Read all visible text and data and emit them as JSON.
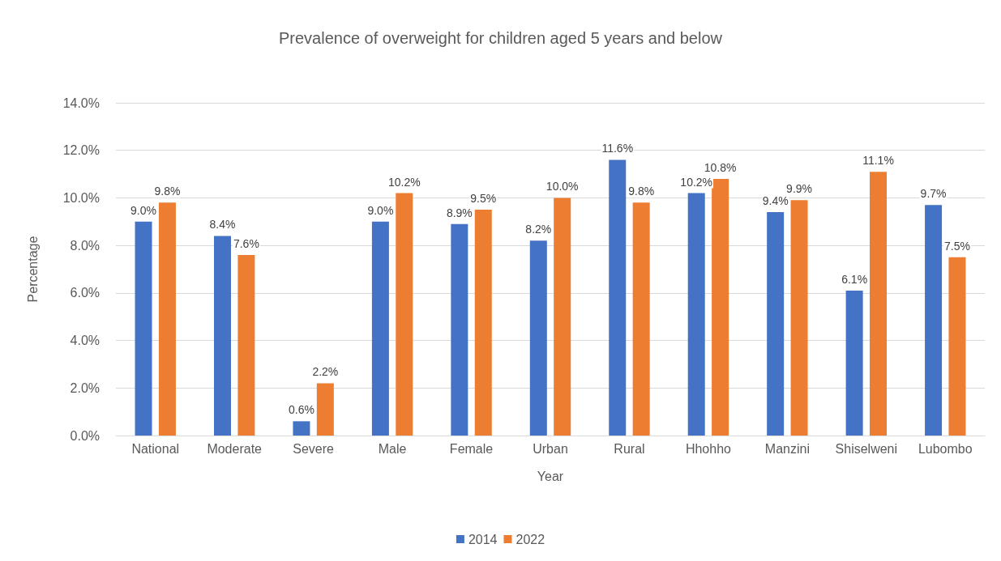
{
  "chart_data": {
    "type": "bar",
    "title": "Prevalence of overweight for children aged 5 years and below",
    "xlabel": "Year",
    "ylabel": "Percentage",
    "categories": [
      "National",
      "Moderate",
      "Severe",
      "Male",
      "Female",
      "Urban",
      "Rural",
      "Hhohho",
      "Manzini",
      "Shiselweni",
      "Lubombo"
    ],
    "series": [
      {
        "name": "2014",
        "color": "#4472c4",
        "values": [
          9.0,
          8.4,
          0.6,
          9.0,
          8.9,
          8.2,
          11.6,
          10.2,
          9.4,
          6.1,
          9.7
        ],
        "value_labels": [
          "9.0%",
          "8.4%",
          "0.6%",
          "9.0%",
          "8.9%",
          "8.2%",
          "11.6%",
          "10.2%",
          "9.4%",
          "6.1%",
          "9.7%"
        ]
      },
      {
        "name": "2022",
        "color": "#ed7d31",
        "values": [
          9.8,
          7.6,
          2.2,
          10.2,
          9.5,
          10.0,
          9.8,
          10.8,
          9.9,
          11.1,
          7.5
        ],
        "value_labels": [
          "9.8%",
          "7.6%",
          "2.2%",
          "10.2%",
          "9.5%",
          "10.0%",
          "9.8%",
          "10.8%",
          "9.9%",
          "11.1%",
          "7.5%"
        ]
      }
    ],
    "ylim": [
      0,
      14
    ],
    "yticks": [
      {
        "value": 0,
        "label": "0.0%"
      },
      {
        "value": 2,
        "label": "2.0%"
      },
      {
        "value": 4,
        "label": "4.0%"
      },
      {
        "value": 6,
        "label": "6.0%"
      },
      {
        "value": 8,
        "label": "8.0%"
      },
      {
        "value": 10,
        "label": "10.0%"
      },
      {
        "value": 12,
        "label": "12.0%"
      },
      {
        "value": 14,
        "label": "14.0%"
      }
    ],
    "grid": "y",
    "legend": "bottom"
  }
}
